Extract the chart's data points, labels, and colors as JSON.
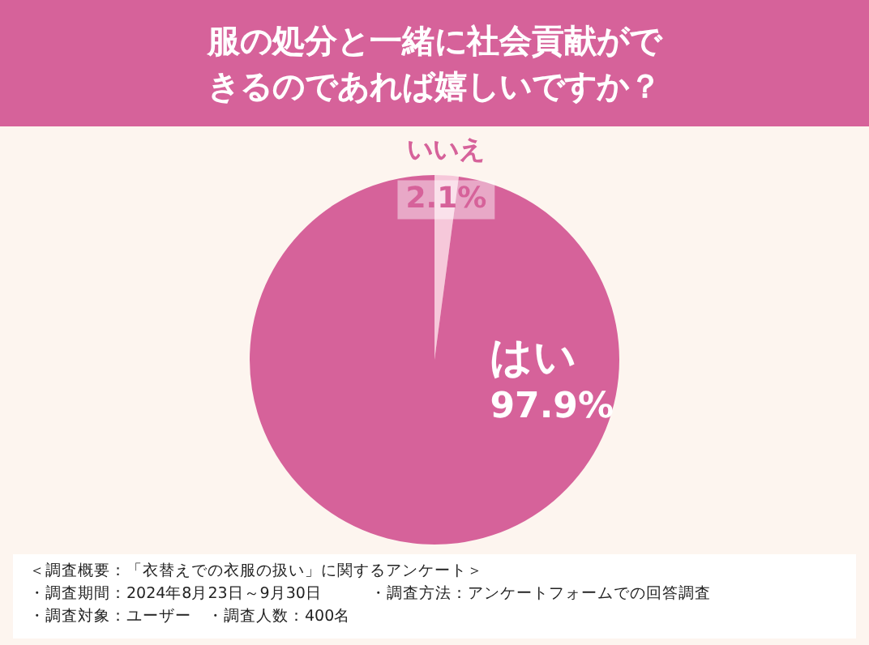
{
  "chart_data": {
    "type": "pie",
    "title": "服の処分と一緒に社会貢献ができるのであれば嬉しいですか？",
    "categories": [
      "いいえ",
      "はい"
    ],
    "values": [
      2.1,
      97.9
    ],
    "value_labels": [
      "2.1%",
      "97.9%"
    ],
    "colors": [
      "#f6c8da",
      "#d6629a"
    ],
    "legend": false,
    "annotations": [
      "＜調査概要：「衣替えでの衣服の扱い」に関するアンケート＞",
      "・調査期間：2024年8月23日～9月30日　　　・調査方法：アンケートフォームでの回答調査",
      "・調査対象：ユーザー　・調査人数：400名"
    ]
  }
}
